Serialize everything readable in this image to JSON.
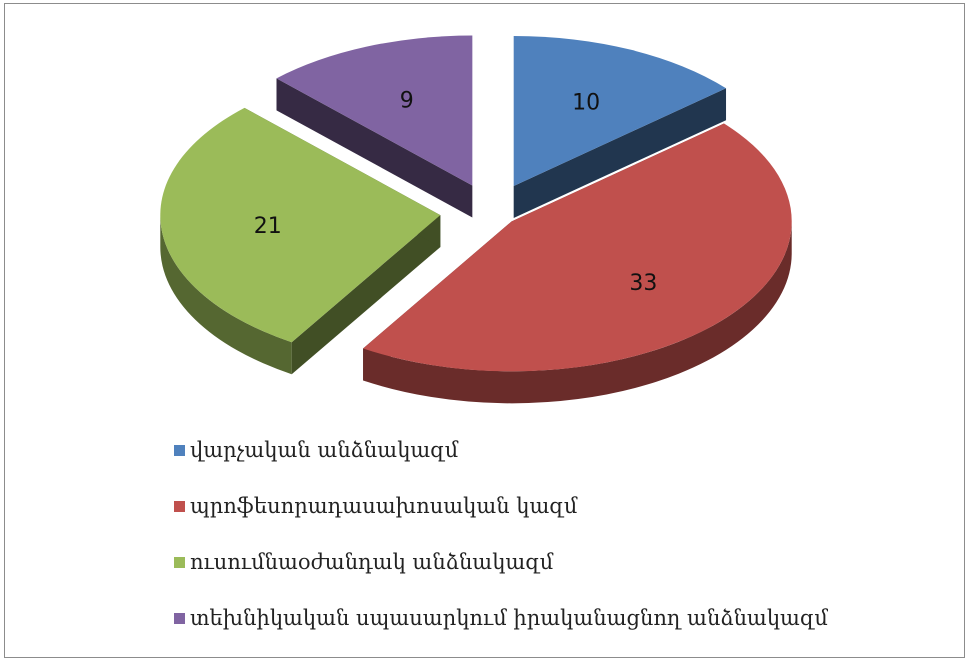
{
  "chart_data": {
    "type": "pie",
    "title": "",
    "style": "3d-exploded",
    "categories": [
      "վարչական անձնակազմ",
      "պրոֆեսորադասախոսական կազմ",
      "ուսումնաօժանդակ անձնակազմ",
      "տեխնիկական սպասարկում իրականացնող անձնակազմ"
    ],
    "values": [
      10,
      33,
      21,
      9
    ],
    "data_labels": [
      "10",
      "33",
      "21",
      "9"
    ],
    "colors": [
      "#4f81bd",
      "#c0504d",
      "#9bbb59",
      "#8064a2"
    ],
    "legend_position": "bottom"
  }
}
